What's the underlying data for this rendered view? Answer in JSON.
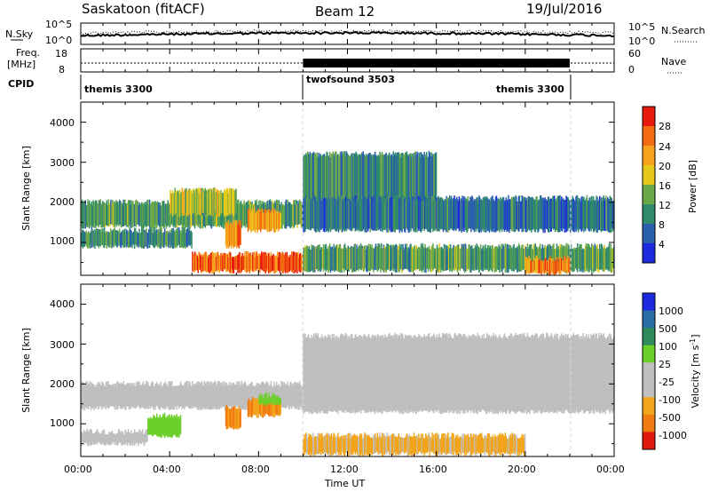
{
  "header": {
    "station": "Saskatoon (fitACF)",
    "beam": "Beam 12",
    "date": "19/Jul/2016"
  },
  "noise_panel": {
    "left_label": "N.Sky",
    "left_ticks": [
      "10^5",
      "10^0"
    ],
    "right_label": "N.Search",
    "right_ticks": [
      "10^5",
      "10^0"
    ]
  },
  "freq_panel": {
    "left_label_1": "Freq.",
    "left_label_2": "[MHz]",
    "left_ticks": [
      "18",
      "8"
    ],
    "right_label": "Nave",
    "right_ticks": [
      "60",
      "0"
    ]
  },
  "cpid_panel": {
    "label": "CPID",
    "segments": [
      "themis 3300",
      "twofsound 3503",
      "themis 3300"
    ]
  },
  "time_axis": {
    "label": "Time UT",
    "ticks": [
      "00:00",
      "04:00",
      "08:00",
      "12:00",
      "16:00",
      "20:00",
      "00:00"
    ]
  },
  "power_panel": {
    "ylabel": "Slant Range [km]",
    "yticks": [
      "1000",
      "2000",
      "3000",
      "4000"
    ],
    "colorbar_label": "Power [dB]",
    "colorbar_ticks": [
      "28",
      "24",
      "20",
      "16",
      "12",
      "8",
      "4"
    ],
    "colorbar_colors": [
      "#e81a0c",
      "#f26a12",
      "#f6a21a",
      "#e6c81a",
      "#6aa84a",
      "#2e8a6a",
      "#2a5fae",
      "#1a2adc"
    ]
  },
  "velocity_panel": {
    "ylabel": "Slant Range [km]",
    "yticks": [
      "1000",
      "2000",
      "3000",
      "4000"
    ],
    "colorbar_label": "Velocity [m s",
    "colorbar_label_sup": "-1",
    "colorbar_label_end": "]",
    "colorbar_ticks": [
      "1000",
      "500",
      "100",
      "25",
      "-25",
      "-100",
      "-500",
      "-1000"
    ],
    "colorbar_colors": [
      "#1a2adc",
      "#2a6ea8",
      "#2e8a5a",
      "#6ccf2a",
      "#bfbfbf",
      "#bfbfbf",
      "#f2a41a",
      "#f27a12",
      "#e01a0c"
    ]
  },
  "chart_data": {
    "type": "heatmap",
    "title": "Saskatoon (fitACF)",
    "xlabel": "Time UT",
    "xlim_hours": [
      0,
      24
    ],
    "ylabel": "Slant Range [km]",
    "ylim": [
      180,
      4500
    ],
    "cpid_segments": [
      {
        "label": "themis 3300",
        "start": 0,
        "end": 10
      },
      {
        "label": "twofsound 3503",
        "start": 10,
        "end": 22
      },
      {
        "label": "themis 3300",
        "start": 22,
        "end": 24
      }
    ],
    "freq_mhz": [
      {
        "start": 0,
        "end": 10,
        "value": 10.5
      },
      {
        "start": 10,
        "end": 22,
        "value": 13
      },
      {
        "start": 22,
        "end": 24,
        "value": 10.5
      }
    ],
    "power_bands": [
      {
        "start": 0,
        "end": 10,
        "range_low": 1400,
        "range_high": 2000,
        "db": 12
      },
      {
        "start": 0,
        "end": 5,
        "range_low": 900,
        "range_high": 1300,
        "db": 10
      },
      {
        "start": 4,
        "end": 7,
        "range_low": 1700,
        "range_high": 2300,
        "db": 16
      },
      {
        "start": 6.5,
        "end": 7.2,
        "range_low": 900,
        "range_high": 1500,
        "db": 24
      },
      {
        "start": 7.5,
        "end": 9,
        "range_low": 1300,
        "range_high": 1800,
        "db": 22
      },
      {
        "start": 5,
        "end": 10,
        "range_low": 280,
        "range_high": 700,
        "db": 26
      },
      {
        "start": 10,
        "end": 16,
        "range_low": 2000,
        "range_high": 3200,
        "db": 10
      },
      {
        "start": 10,
        "end": 24,
        "range_low": 1300,
        "range_high": 2100,
        "db": 8
      },
      {
        "start": 10,
        "end": 24,
        "range_low": 300,
        "range_high": 900,
        "db": 12
      },
      {
        "start": 20,
        "end": 22,
        "range_low": 250,
        "range_high": 600,
        "db": 24
      }
    ],
    "velocity_bands": [
      {
        "start": 0,
        "end": 10,
        "range_low": 1400,
        "range_high": 2000,
        "velocity": 0
      },
      {
        "start": 0,
        "end": 3,
        "range_low": 500,
        "range_high": 800,
        "velocity": 0
      },
      {
        "start": 3,
        "end": 4.5,
        "range_low": 700,
        "range_high": 1200,
        "velocity": 80
      },
      {
        "start": 6.5,
        "end": 7.2,
        "range_low": 900,
        "range_high": 1400,
        "velocity": -300
      },
      {
        "start": 7.5,
        "end": 9,
        "range_low": 1200,
        "range_high": 1600,
        "velocity": -300
      },
      {
        "start": 8,
        "end": 9,
        "range_low": 1500,
        "range_high": 1700,
        "velocity": 80
      },
      {
        "start": 10,
        "end": 24,
        "range_low": 1300,
        "range_high": 3200,
        "velocity": 0
      },
      {
        "start": 10,
        "end": 20,
        "range_low": 250,
        "range_high": 700,
        "velocity": -70
      }
    ]
  }
}
